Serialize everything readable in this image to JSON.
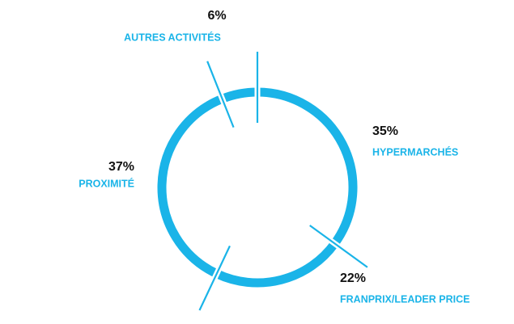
{
  "chart_data": {
    "type": "pie",
    "categories": [
      "AUTRES ACTIVITÉS",
      "HYPERMARCHÉS",
      "FRANPRIX/LEADER PRICE",
      "PROXIMITÉ"
    ],
    "values": [
      6,
      35,
      22,
      37
    ],
    "value_labels": [
      "6%",
      "35%",
      "22%",
      "37%"
    ],
    "color": "#1ab4e8"
  }
}
